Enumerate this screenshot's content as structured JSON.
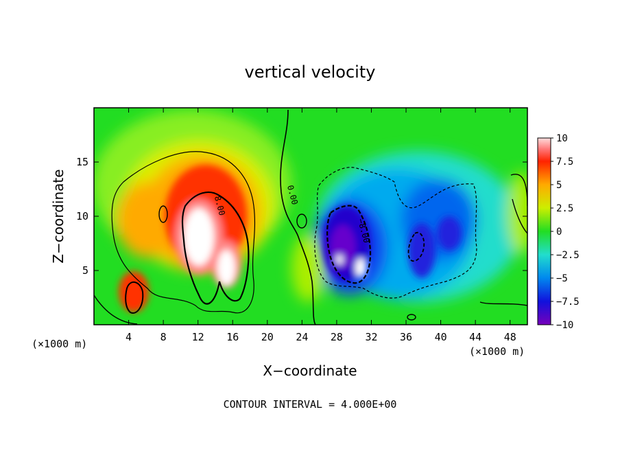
{
  "chart_data": {
    "type": "heatmap",
    "title": "vertical velocity",
    "xlabel": "X−coordinate",
    "ylabel": "Z−coordinate",
    "x_unit": "(×1000 m)",
    "x_unit_right": "(×1000 m)",
    "xlim": [
      0,
      50
    ],
    "ylim": [
      0,
      20
    ],
    "x_ticks": [
      4,
      8,
      12,
      16,
      20,
      24,
      28,
      32,
      36,
      40,
      44,
      48
    ],
    "y_ticks": [
      5,
      10,
      15
    ],
    "colorbar": {
      "min": -10,
      "max": 10,
      "ticks": [
        "10",
        "7.5",
        "5",
        "2.5",
        "0",
        "−2.5",
        "−5",
        "−7.5",
        "−10"
      ],
      "tick_values": [
        10,
        7.5,
        5,
        2.5,
        0,
        -2.5,
        -5,
        -7.5,
        -10
      ]
    },
    "contour_labels": [
      {
        "text": "8.00",
        "x": 14.2,
        "y": 10.9
      },
      {
        "text": "0.00",
        "x": 22.6,
        "y": 11.9
      },
      {
        "text": "−8.00",
        "x": 30.8,
        "y": 8.6
      }
    ],
    "features": [
      {
        "x": 13,
        "y": 9,
        "value": 10
      },
      {
        "x": 15,
        "y": 6,
        "value": 10
      },
      {
        "x": 12,
        "y": 11,
        "value": 8
      },
      {
        "x": 7,
        "y": 10,
        "value": 5
      },
      {
        "x": 5,
        "y": 3,
        "value": 7
      },
      {
        "x": 14,
        "y": 14,
        "value": 5
      },
      {
        "x": 28,
        "y": 8,
        "value": -9
      },
      {
        "x": 30,
        "y": 6,
        "value": -10
      },
      {
        "x": 33,
        "y": 9,
        "value": -6
      },
      {
        "x": 38,
        "y": 8,
        "value": -7
      },
      {
        "x": 41,
        "y": 9,
        "value": -7
      },
      {
        "x": 35,
        "y": 4,
        "value": -6
      }
    ]
  },
  "footer": {
    "contour_interval": "CONTOUR INTERVAL =  4.000E+00"
  }
}
